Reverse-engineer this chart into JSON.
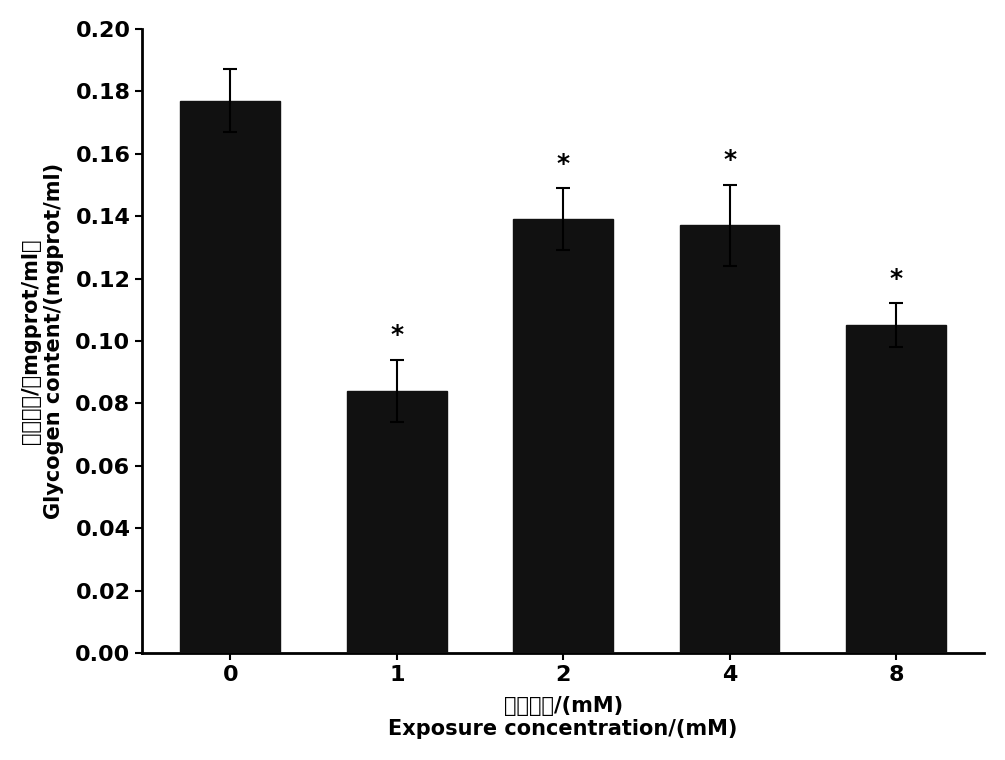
{
  "categories": [
    "0",
    "1",
    "2",
    "4",
    "8"
  ],
  "values": [
    0.177,
    0.084,
    0.139,
    0.137,
    0.105
  ],
  "errors": [
    0.01,
    0.01,
    0.01,
    0.013,
    0.007
  ],
  "bar_color": "#111111",
  "bar_width": 0.6,
  "ylim": [
    0.0,
    0.2
  ],
  "yticks": [
    0.0,
    0.02,
    0.04,
    0.06,
    0.08,
    0.1,
    0.12,
    0.14,
    0.16,
    0.18,
    0.2
  ],
  "ylabel_chinese": "糖原含量/（mgprot/ml）",
  "ylabel_english": "Glycogen content/(mgprot/ml)",
  "xlabel_chinese": "暴露浓度/(mM)",
  "xlabel_english": "Exposure concentration/(mM)",
  "significance": [
    false,
    true,
    true,
    true,
    true
  ],
  "background_color": "#ffffff",
  "error_capsize": 5,
  "error_linewidth": 1.5,
  "star_fontsize": 18,
  "tick_fontsize": 16,
  "label_fontsize": 15,
  "spine_linewidth": 2.0
}
